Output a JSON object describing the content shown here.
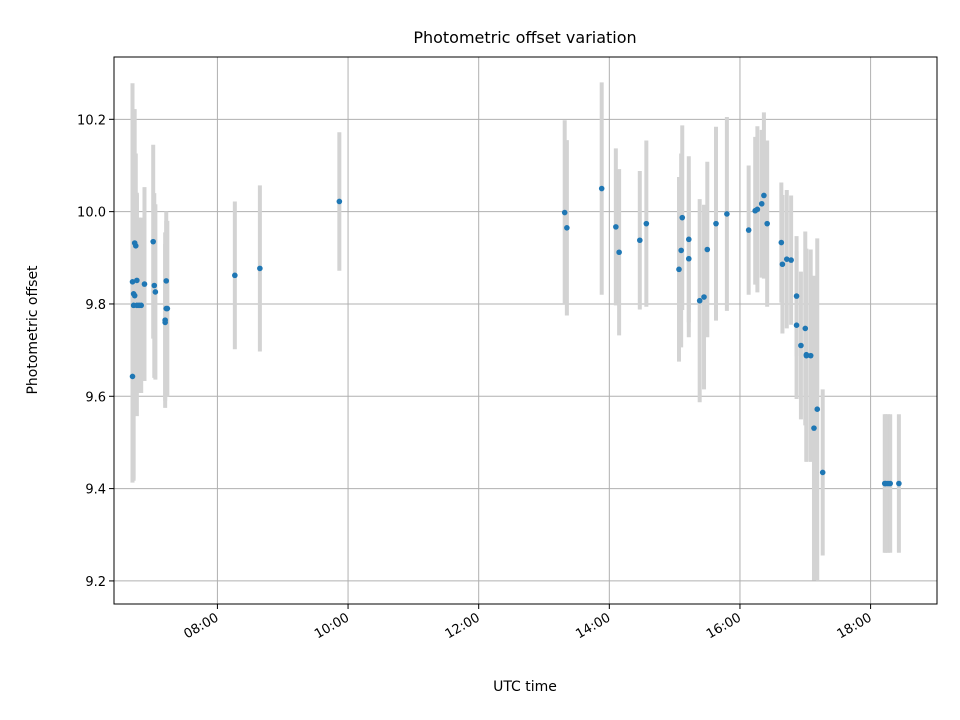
{
  "chart_data": {
    "type": "scatter",
    "title": "Photometric offset variation",
    "xlabel": "UTC time",
    "ylabel": "Photometric offset",
    "x_unit": "UTC",
    "xlim": [
      "06:25",
      "19:01"
    ],
    "ylim": [
      9.15,
      10.335
    ],
    "x_ticks": [
      "08:00",
      "10:00",
      "12:00",
      "14:00",
      "16:00",
      "18:00"
    ],
    "y_ticks": [
      "9.2",
      "9.4",
      "9.6",
      "9.8",
      "10.0",
      "10.2"
    ],
    "grid": true,
    "legend": "none",
    "colors": {
      "points": "#1f77b4",
      "errorbars": "#d3d3d3",
      "grid": "#b0b0b0"
    },
    "series": [
      {
        "x": [
          "06:42",
          "06:42",
          "06:43",
          "06:43",
          "06:44",
          "06:44",
          "06:45",
          "06:46",
          "06:46",
          "06:48",
          "06:50",
          "06:53",
          "07:01",
          "07:02",
          "07:03",
          "07:12",
          "07:12",
          "07:13",
          "07:13",
          "07:14",
          "08:16",
          "08:39",
          "09:52",
          "13:19",
          "13:21",
          "13:53",
          "14:06",
          "14:09",
          "14:28",
          "14:34",
          "15:04",
          "15:06",
          "15:07",
          "15:13",
          "15:13",
          "15:23",
          "15:27",
          "15:30",
          "15:38",
          "15:48",
          "16:08",
          "16:14",
          "16:16",
          "16:20",
          "16:22",
          "16:25",
          "16:38",
          "16:39",
          "16:43",
          "16:47",
          "16:52",
          "16:52",
          "16:56",
          "17:00",
          "17:01",
          "17:01",
          "17:05",
          "17:08",
          "17:11",
          "17:16",
          "18:13",
          "18:14",
          "18:16",
          "18:18",
          "18:26"
        ],
        "y": [
          9.848,
          9.643,
          9.797,
          9.822,
          9.818,
          9.932,
          9.926,
          9.797,
          9.851,
          9.797,
          9.797,
          9.843,
          9.935,
          9.84,
          9.826,
          9.765,
          9.76,
          9.79,
          9.85,
          9.79,
          9.862,
          9.877,
          10.022,
          9.998,
          9.965,
          10.05,
          9.967,
          9.912,
          9.938,
          9.974,
          9.875,
          9.916,
          9.987,
          9.898,
          9.94,
          9.807,
          9.815,
          9.918,
          9.974,
          9.995,
          9.96,
          10.002,
          10.005,
          10.017,
          10.035,
          9.974,
          9.933,
          9.886,
          9.897,
          9.895,
          9.817,
          9.754,
          9.71,
          9.747,
          9.69,
          9.688,
          9.688,
          9.531,
          9.572,
          9.435,
          9.411,
          9.411,
          9.411,
          9.411,
          9.411
        ],
        "err": [
          0.43,
          0.23,
          0.38,
          0.4,
          0.21,
          0.29,
          0.2,
          0.24,
          0.19,
          0.19,
          0.19,
          0.21,
          0.21,
          0.2,
          0.19,
          0.19,
          0.17,
          0.19,
          0.15,
          0.19,
          0.16,
          0.18,
          0.15,
          0.2,
          0.19,
          0.23,
          0.17,
          0.18,
          0.15,
          0.18,
          0.2,
          0.21,
          0.2,
          0.17,
          0.18,
          0.22,
          0.2,
          0.19,
          0.21,
          0.21,
          0.14,
          0.16,
          0.18,
          0.16,
          0.18,
          0.18,
          0.13,
          0.15,
          0.15,
          0.14,
          0.13,
          0.16,
          0.16,
          0.21,
          0.23,
          0.23,
          0.23,
          0.33,
          0.37,
          0.18,
          0.15,
          0.15,
          0.15,
          0.15,
          0.15
        ]
      }
    ]
  }
}
